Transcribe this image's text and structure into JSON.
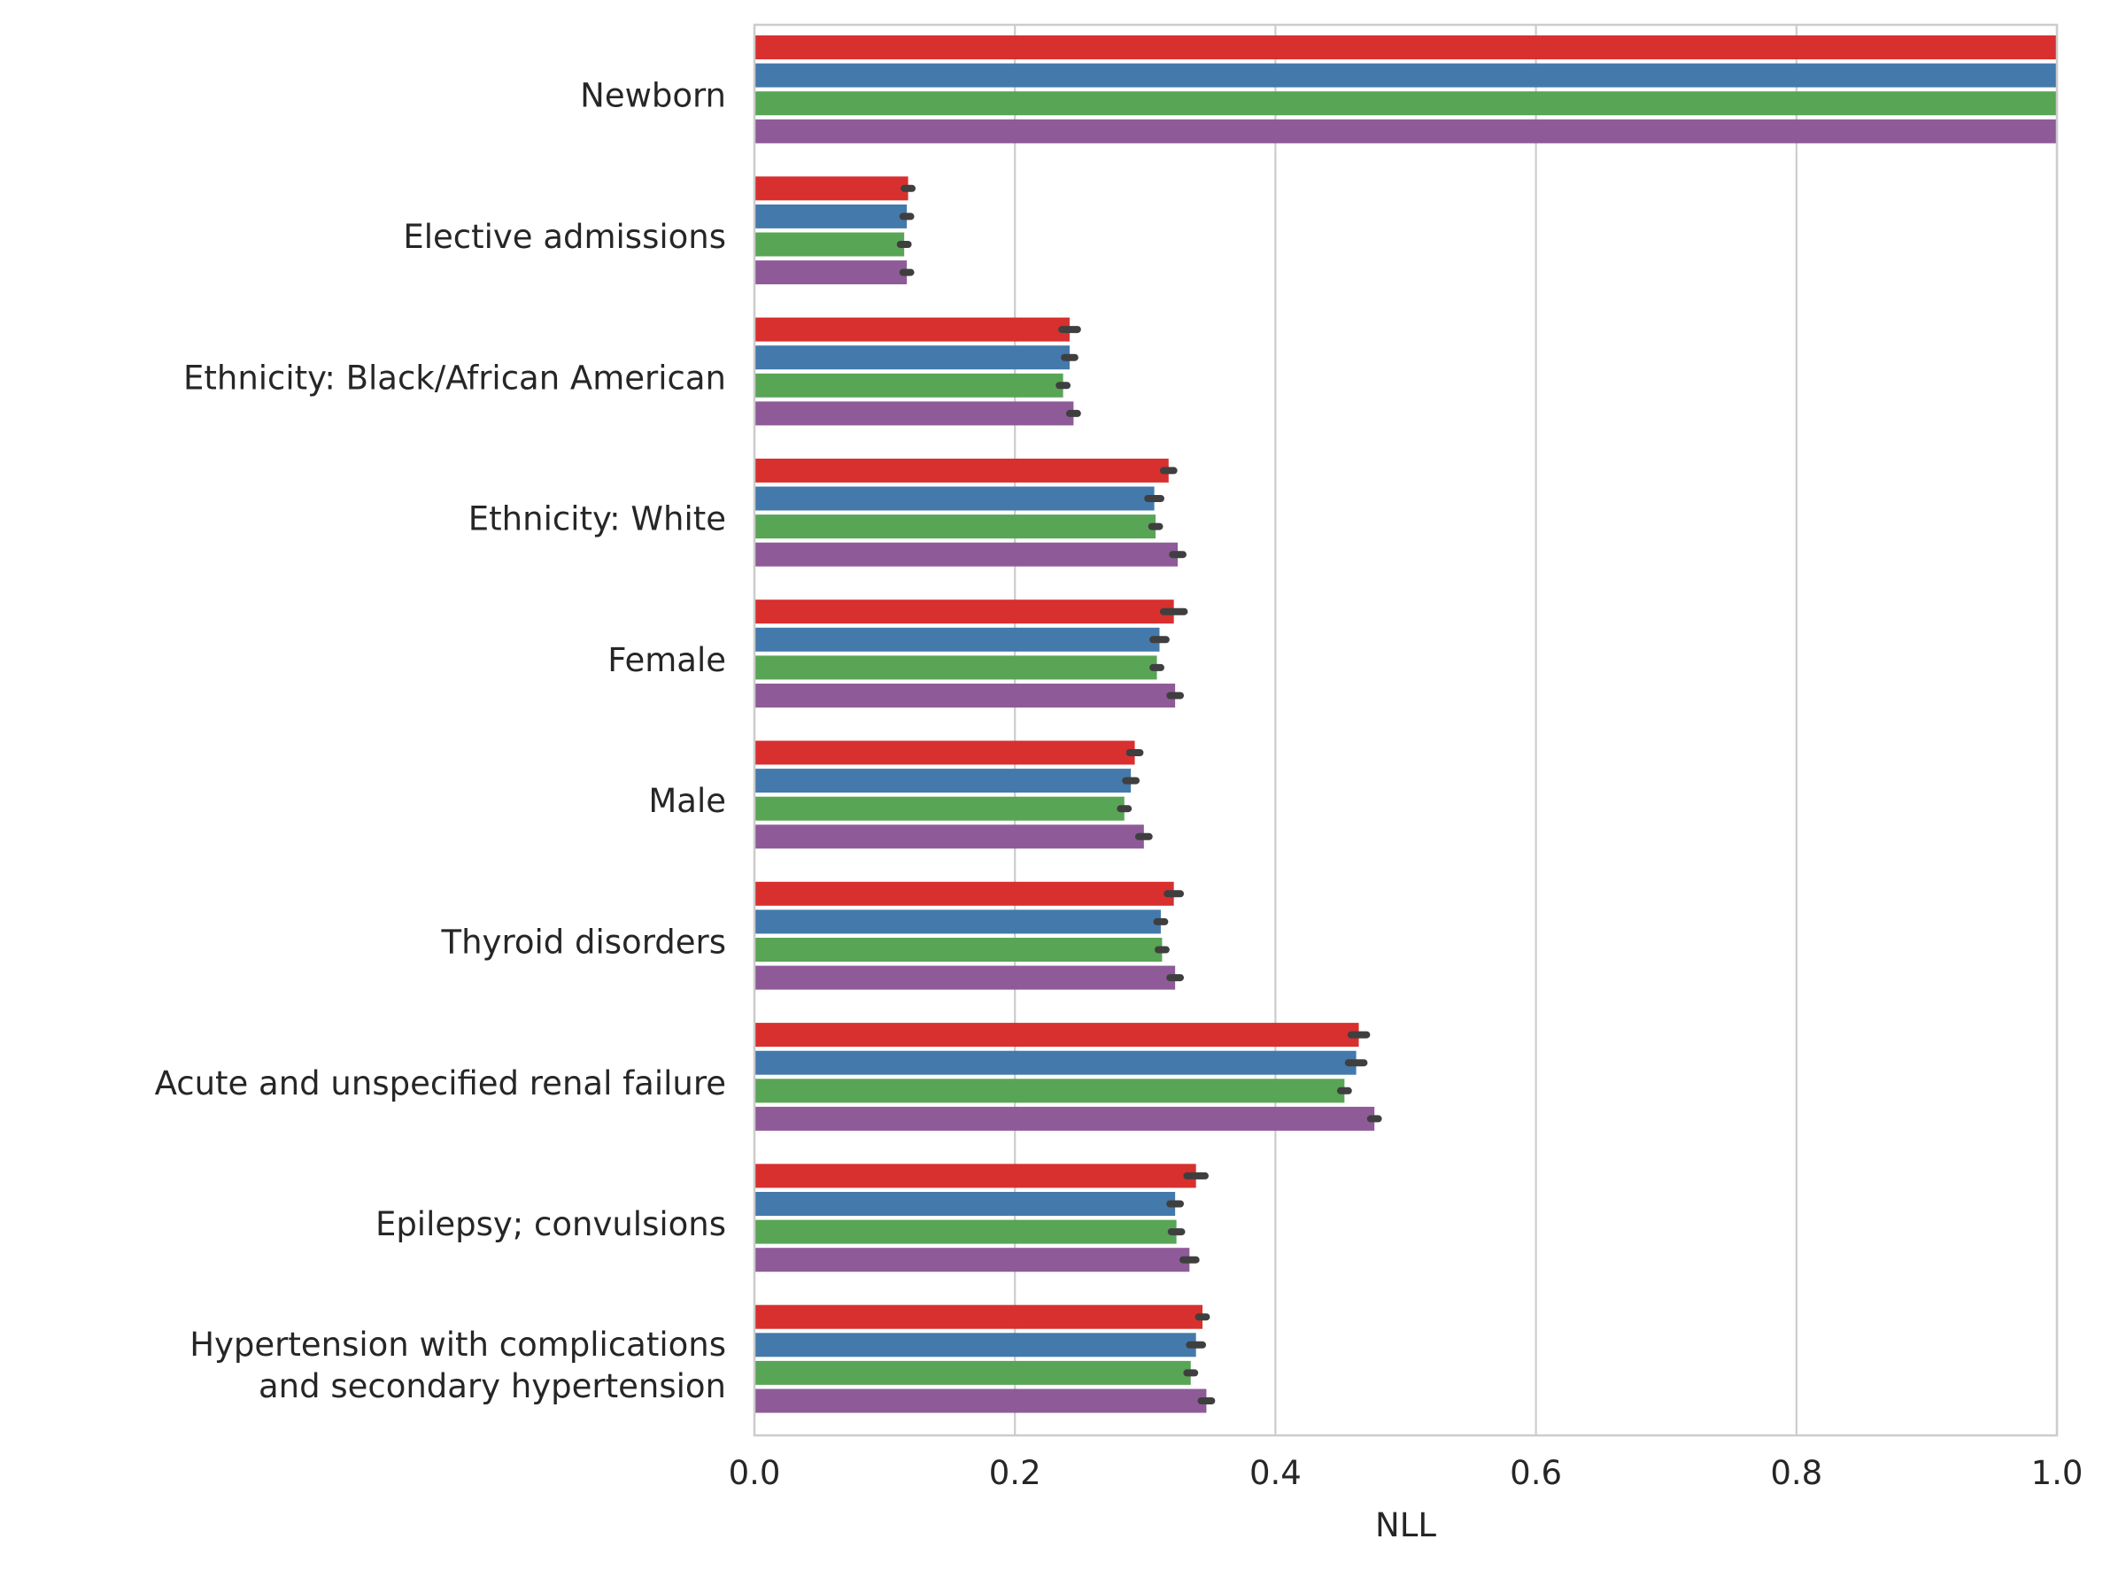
{
  "chart_data": {
    "type": "bar",
    "orientation": "horizontal",
    "title": "",
    "xlabel": "NLL",
    "ylabel": "",
    "xlim": [
      0.0,
      1.0
    ],
    "xticks": [
      0.0,
      0.2,
      0.4,
      0.6,
      0.8,
      1.0
    ],
    "xtick_labels": [
      "0.0",
      "0.2",
      "0.4",
      "0.6",
      "0.8",
      "1.0"
    ],
    "grid": "vertical",
    "legend": "none",
    "categories": [
      "Newborn",
      "Elective admissions",
      "Ethnicity: Black/African American",
      "Ethnicity: White",
      "Female",
      "Male",
      "Thyroid disorders",
      "Acute and unspecified renal failure",
      "Epilepsy; convulsions",
      "Hypertension with complications\nand secondary hypertension"
    ],
    "series": [
      {
        "color": "#d7302f",
        "values": [
          1.0,
          0.118,
          0.242,
          0.318,
          0.322,
          0.292,
          0.322,
          0.464,
          0.339,
          0.344
        ],
        "errors": [
          0.0,
          0.003,
          0.006,
          0.004,
          0.008,
          0.004,
          0.005,
          0.006,
          0.007,
          0.003
        ]
      },
      {
        "color": "#4479ab",
        "values": [
          1.0,
          0.117,
          0.242,
          0.307,
          0.311,
          0.289,
          0.312,
          0.462,
          0.323,
          0.339
        ],
        "errors": [
          0.0,
          0.003,
          0.004,
          0.005,
          0.005,
          0.004,
          0.003,
          0.006,
          0.004,
          0.005
        ]
      },
      {
        "color": "#59a556",
        "values": [
          1.0,
          0.115,
          0.237,
          0.308,
          0.309,
          0.284,
          0.313,
          0.453,
          0.324,
          0.335
        ],
        "errors": [
          0.0,
          0.003,
          0.003,
          0.003,
          0.003,
          0.003,
          0.003,
          0.003,
          0.004,
          0.003
        ]
      },
      {
        "color": "#8e5b98",
        "values": [
          1.0,
          0.117,
          0.245,
          0.325,
          0.323,
          0.299,
          0.323,
          0.476,
          0.334,
          0.347
        ],
        "errors": [
          0.0,
          0.003,
          0.003,
          0.004,
          0.004,
          0.004,
          0.004,
          0.003,
          0.005,
          0.004
        ]
      }
    ]
  }
}
